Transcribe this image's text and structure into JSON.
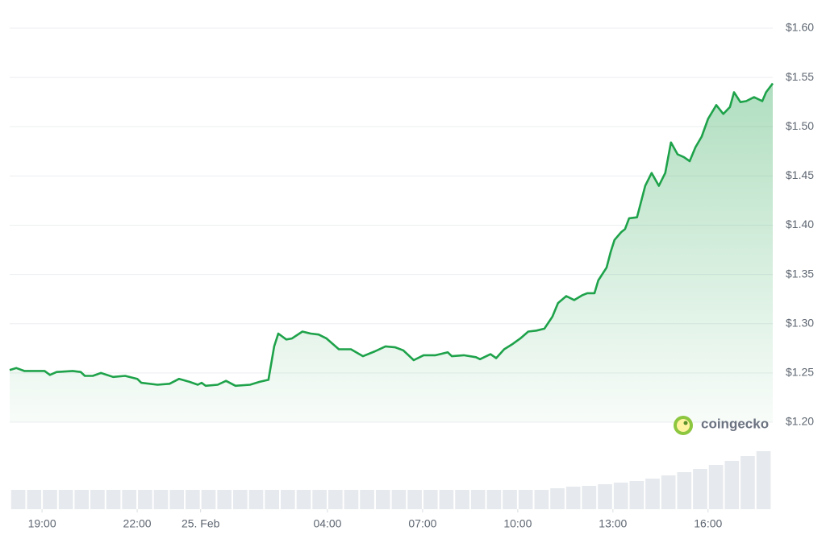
{
  "chart_data": {
    "type": "line",
    "x": [
      17.98,
      18.19,
      18.44,
      19.08,
      19.25,
      19.46,
      19.97,
      20.22,
      20.35,
      20.6,
      20.86,
      21.24,
      21.62,
      22.0,
      22.13,
      22.64,
      23.02,
      23.32,
      23.65,
      23.91,
      24.03,
      24.16,
      24.54,
      24.8,
      25.1,
      25.56,
      25.86,
      26.14,
      26.32,
      26.45,
      26.7,
      26.88,
      27.21,
      27.47,
      27.72,
      27.97,
      28.36,
      28.74,
      29.12,
      29.5,
      29.83,
      30.14,
      30.39,
      30.72,
      31.03,
      31.41,
      31.79,
      31.92,
      32.3,
      32.68,
      32.81,
      33.14,
      33.32,
      33.57,
      33.82,
      34.08,
      34.33,
      34.59,
      34.84,
      35.09,
      35.27,
      35.53,
      35.78,
      36.04,
      36.19,
      36.42,
      36.54,
      36.8,
      36.93,
      37.05,
      37.26,
      37.38,
      37.51,
      37.76,
      38.02,
      38.22,
      38.45,
      38.65,
      38.83,
      39.04,
      39.24,
      39.42,
      39.6,
      39.8,
      40.0,
      40.26,
      40.48,
      40.69,
      40.82,
      41.02,
      41.2,
      41.45,
      41.71,
      41.83,
      42.04
    ],
    "series": [
      {
        "color": "#1ea24a",
        "values": [
          1.253,
          1.255,
          1.252,
          1.252,
          1.248,
          1.251,
          1.252,
          1.251,
          1.247,
          1.247,
          1.25,
          1.246,
          1.247,
          1.244,
          1.24,
          1.238,
          1.239,
          1.244,
          1.241,
          1.238,
          1.24,
          1.237,
          1.238,
          1.242,
          1.237,
          1.238,
          1.241,
          1.243,
          1.277,
          1.29,
          1.284,
          1.285,
          1.292,
          1.29,
          1.289,
          1.285,
          1.274,
          1.274,
          1.267,
          1.272,
          1.277,
          1.276,
          1.273,
          1.263,
          1.268,
          1.268,
          1.271,
          1.267,
          1.268,
          1.266,
          1.264,
          1.269,
          1.265,
          1.274,
          1.279,
          1.285,
          1.292,
          1.293,
          1.295,
          1.307,
          1.321,
          1.328,
          1.324,
          1.329,
          1.331,
          1.331,
          1.344,
          1.357,
          1.373,
          1.385,
          1.393,
          1.396,
          1.407,
          1.408,
          1.44,
          1.453,
          1.44,
          1.453,
          1.484,
          1.472,
          1.469,
          1.465,
          1.479,
          1.49,
          1.508,
          1.522,
          1.513,
          1.52,
          1.535,
          1.525,
          1.526,
          1.53,
          1.526,
          1.535,
          1.544
        ]
      }
    ],
    "xlim": [
      17.98,
      42.04
    ],
    "xticks": [
      {
        "value": 19,
        "label": "19:00"
      },
      {
        "value": 22,
        "label": "22:00"
      },
      {
        "value": 24,
        "label": "25. Feb"
      },
      {
        "value": 28,
        "label": "04:00"
      },
      {
        "value": 31,
        "label": "07:00"
      },
      {
        "value": 34,
        "label": "10:00"
      },
      {
        "value": 37,
        "label": "13:00"
      },
      {
        "value": 40,
        "label": "16:00"
      }
    ],
    "ylim": [
      1.2,
      1.6
    ],
    "yticks": [
      {
        "value": 1.2,
        "label": "$1.20"
      },
      {
        "value": 1.25,
        "label": "$1.25"
      },
      {
        "value": 1.3,
        "label": "$1.30"
      },
      {
        "value": 1.35,
        "label": "$1.35"
      },
      {
        "value": 1.4,
        "label": "$1.40"
      },
      {
        "value": 1.45,
        "label": "$1.45"
      },
      {
        "value": 1.5,
        "label": "$1.50"
      },
      {
        "value": 1.55,
        "label": "$1.55"
      },
      {
        "value": 1.6,
        "label": "$1.60"
      }
    ],
    "grid": true,
    "volume": {
      "color": "#e6e9ed",
      "axis": "y2",
      "x": [
        18.25,
        18.75,
        19.25,
        19.75,
        20.25,
        20.75,
        21.25,
        21.75,
        22.25,
        22.75,
        23.25,
        23.75,
        24.25,
        24.75,
        25.25,
        25.75,
        26.25,
        26.75,
        27.25,
        27.75,
        28.25,
        28.75,
        29.25,
        29.75,
        30.25,
        30.75,
        31.25,
        31.75,
        32.25,
        32.75,
        33.25,
        33.75,
        34.25,
        34.75,
        35.25,
        35.75,
        36.25,
        36.75,
        37.25,
        37.75,
        38.25,
        38.75,
        39.25,
        39.75,
        40.25,
        40.75,
        41.25,
        41.75
      ],
      "values": [
        24,
        24,
        24,
        24,
        24,
        24,
        24,
        24,
        24,
        24,
        24,
        24,
        24,
        24,
        24,
        24,
        24,
        24,
        24,
        24,
        24,
        24,
        24,
        24,
        24,
        24,
        24,
        24,
        24,
        24,
        24,
        24,
        24,
        24,
        26,
        28,
        29,
        31,
        33,
        35,
        38,
        42,
        46,
        50,
        55,
        60,
        66,
        72
      ]
    },
    "y2lim": [
      0,
      100
    ],
    "watermark": "coingecko"
  }
}
